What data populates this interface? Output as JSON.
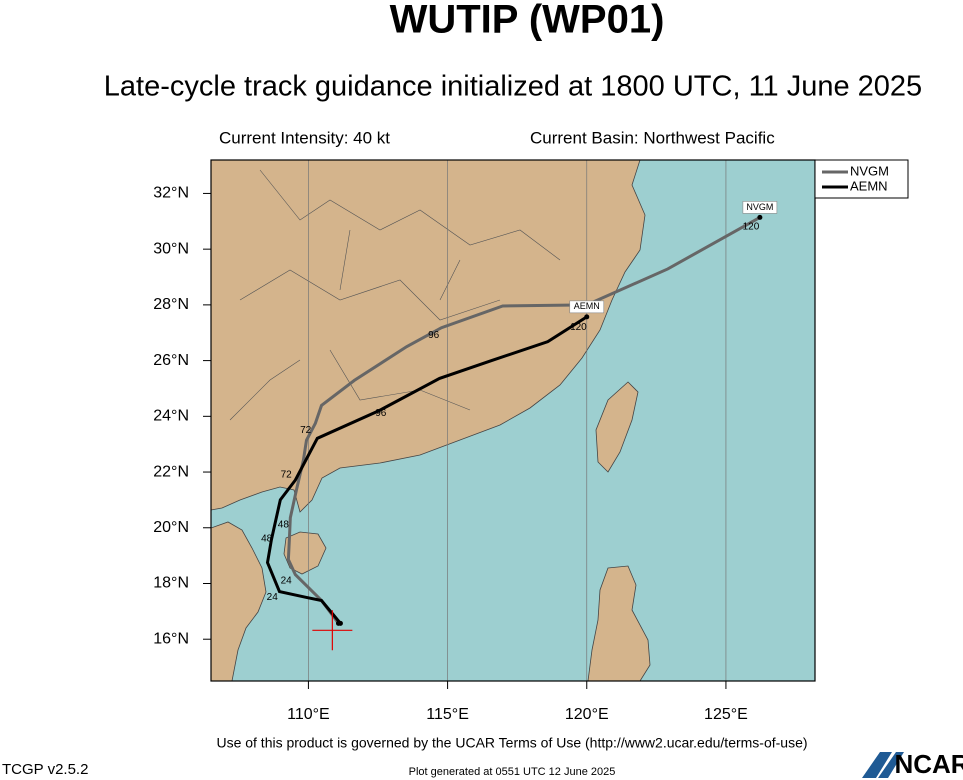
{
  "chart_data": {
    "type": "track",
    "title": "WUTIP (WP01)",
    "subtitle": "Late-cycle track guidance initialized at 1800 UTC, 11 June 2025",
    "intensity_label": "Current Intensity: 40 kt",
    "basin_label": "Current Basin: Northwest Pacific",
    "terms": "Use of this product is governed by the UCAR Terms of Use (http://www2.ucar.edu/terms-of-use)",
    "version": "TCGP v2.5.2",
    "generated": "Plot generated at 0551 UTC   12 June 2025",
    "logo": "NCAR",
    "xlim": [
      106.5,
      128.2
    ],
    "ylim": [
      14.5,
      33.2
    ],
    "xticks": [
      {
        "value": 110,
        "label": "110°E"
      },
      {
        "value": 115,
        "label": "115°E"
      },
      {
        "value": 120,
        "label": "120°E"
      },
      {
        "value": 125,
        "label": "125°E"
      }
    ],
    "yticks": [
      {
        "value": 16,
        "label": "16°N"
      },
      {
        "value": 18,
        "label": "18°N"
      },
      {
        "value": 20,
        "label": "20°N"
      },
      {
        "value": 22,
        "label": "22°N"
      },
      {
        "value": 24,
        "label": "24°N"
      },
      {
        "value": 26,
        "label": "26°N"
      },
      {
        "value": 28,
        "label": "28°N"
      },
      {
        "value": 30,
        "label": "30°N"
      },
      {
        "value": 32,
        "label": "32°N"
      }
    ],
    "current_position": {
      "lon": 110.86,
      "lat": 16.32
    },
    "series": [
      {
        "name": "NVGM",
        "color": "#666666",
        "x": [
          111.08,
          110.47,
          109.53,
          109.28,
          109.32,
          109.35,
          109.57,
          109.82,
          109.93,
          110.25,
          110.47,
          111.65,
          113.53,
          114.78,
          116.98,
          120.0,
          122.91,
          126.22
        ],
        "values": [
          16.57,
          17.39,
          18.32,
          18.86,
          19.68,
          20.36,
          21.36,
          22.43,
          23.14,
          23.75,
          24.39,
          25.29,
          26.5,
          27.18,
          27.96,
          28.0,
          29.29,
          31.14
        ],
        "hour_labels": [
          {
            "text": "24",
            "lon": 109.2,
            "lat": 18.1
          },
          {
            "text": "48",
            "lon": 109.1,
            "lat": 20.1
          },
          {
            "text": "72",
            "lon": 109.9,
            "lat": 23.5
          },
          {
            "text": "96",
            "lon": 114.5,
            "lat": 26.9
          },
          {
            "text": "120",
            "lon": 125.9,
            "lat": 30.8
          }
        ]
      },
      {
        "name": "AEMN",
        "color": "#000000",
        "x": [
          111.15,
          110.47,
          109.93,
          108.96,
          108.53,
          108.67,
          108.99,
          109.53,
          110.32,
          112.55,
          114.71,
          116.58,
          118.6,
          120.0
        ],
        "values": [
          16.57,
          17.39,
          17.5,
          17.71,
          18.75,
          19.57,
          21.0,
          21.71,
          23.21,
          24.21,
          25.36,
          26.0,
          26.68,
          27.57
        ],
        "hour_labels": [
          {
            "text": "24",
            "lon": 108.7,
            "lat": 17.5
          },
          {
            "text": "48",
            "lon": 108.5,
            "lat": 19.6
          },
          {
            "text": "72",
            "lon": 109.2,
            "lat": 21.9
          },
          {
            "text": "96",
            "lon": 112.6,
            "lat": 24.1
          },
          {
            "text": "120",
            "lon": 119.7,
            "lat": 27.2
          }
        ]
      }
    ]
  }
}
